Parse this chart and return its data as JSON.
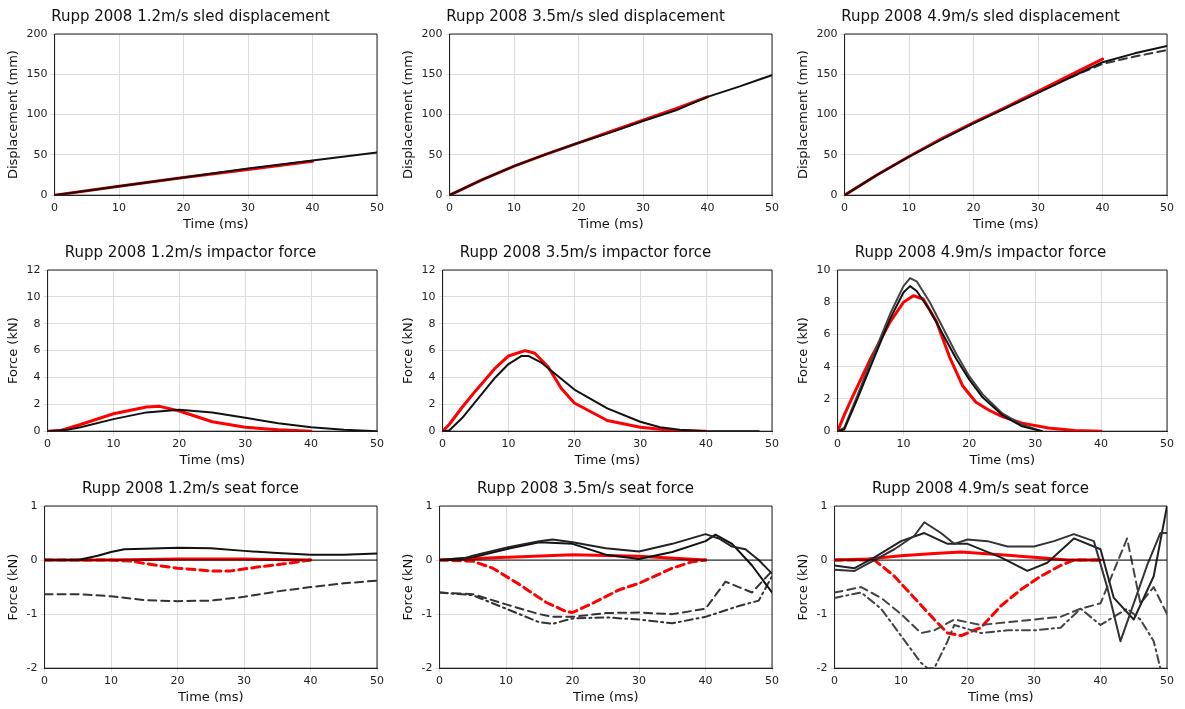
{
  "chart_data": [
    {
      "type": "line",
      "title": "Rupp 2008 1.2m/s sled displacement",
      "xlabel": "Time (ms)",
      "ylabel": "Displacement (mm)",
      "xlim": [
        0,
        50
      ],
      "xticks": [
        0,
        10,
        20,
        30,
        40,
        50
      ],
      "ylim": [
        0,
        200
      ],
      "yticks": [
        0,
        50,
        100,
        150,
        200
      ],
      "grid": true,
      "legend": false,
      "marker": "none",
      "series": [
        {
          "color": "#111111",
          "line_style": "solid",
          "x": [
            0,
            10,
            20,
            30,
            40,
            50
          ],
          "values": [
            0,
            11,
            22,
            33,
            43,
            53
          ]
        },
        {
          "color": "#ff0000",
          "line_style": "solid",
          "x": [
            0,
            10,
            20,
            30,
            40
          ],
          "values": [
            0,
            11,
            22,
            32,
            42
          ]
        }
      ]
    },
    {
      "type": "line",
      "title": "Rupp 2008 3.5m/s sled displacement",
      "xlabel": "Time (ms)",
      "ylabel": "Displacement (mm)",
      "xlim": [
        0,
        50
      ],
      "xticks": [
        0,
        10,
        20,
        30,
        40,
        50
      ],
      "ylim": [
        0,
        200
      ],
      "yticks": [
        0,
        50,
        100,
        150,
        200
      ],
      "grid": true,
      "legend": false,
      "marker": "none",
      "series": [
        {
          "color": "#111111",
          "line_style": "solid",
          "x": [
            0,
            5,
            10,
            15,
            20,
            25,
            30,
            35,
            40,
            45,
            50
          ],
          "values": [
            0,
            19,
            36,
            51,
            65,
            78,
            92,
            105,
            122,
            135,
            149
          ]
        },
        {
          "color": "#ff0000",
          "line_style": "solid",
          "x": [
            0,
            5,
            10,
            15,
            20,
            25,
            30,
            35,
            40
          ],
          "values": [
            0,
            19,
            36,
            51,
            65,
            79,
            93,
            107,
            122
          ]
        }
      ]
    },
    {
      "type": "line",
      "title": "Rupp 2008 4.9m/s sled displacement",
      "xlabel": "Time (ms)",
      "ylabel": "Displacement (mm)",
      "xlim": [
        0,
        50
      ],
      "xticks": [
        0,
        10,
        20,
        30,
        40,
        50
      ],
      "ylim": [
        0,
        200
      ],
      "yticks": [
        0,
        50,
        100,
        150,
        200
      ],
      "grid": true,
      "legend": false,
      "marker": "none",
      "series": [
        {
          "color": "#111111",
          "line_style": "solid",
          "x": [
            0,
            5,
            10,
            15,
            20,
            25,
            30,
            35,
            40,
            45,
            50
          ],
          "values": [
            0,
            25,
            48,
            69,
            89,
            108,
            127,
            146,
            165,
            176,
            185
          ]
        },
        {
          "color": "#333333",
          "line_style": "dashed",
          "x": [
            35,
            40,
            45,
            50
          ],
          "values": [
            146,
            163,
            172,
            180
          ]
        },
        {
          "color": "#ff0000",
          "line_style": "solid",
          "x": [
            0,
            5,
            10,
            15,
            20,
            25,
            30,
            35,
            40
          ],
          "values": [
            0,
            25,
            48,
            70,
            90,
            109,
            129,
            149,
            169
          ]
        }
      ]
    },
    {
      "type": "line",
      "title": "Rupp 2008 1.2m/s impactor force",
      "xlabel": "Time (ms)",
      "ylabel": "Force (kN)",
      "xlim": [
        0,
        50
      ],
      "xticks": [
        0,
        10,
        20,
        30,
        40,
        50
      ],
      "ylim": [
        0,
        12
      ],
      "yticks": [
        0,
        2,
        4,
        6,
        8,
        10,
        12
      ],
      "grid": true,
      "legend": false,
      "marker": "none",
      "series": [
        {
          "color": "#111111",
          "line_style": "solid",
          "x": [
            0,
            3,
            5,
            10,
            15,
            20,
            25,
            30,
            35,
            40,
            45,
            50
          ],
          "values": [
            0,
            0.1,
            0.3,
            0.9,
            1.4,
            1.6,
            1.4,
            1.0,
            0.6,
            0.3,
            0.1,
            0
          ]
        },
        {
          "color": "#ff0000",
          "line_style": "solid",
          "x": [
            0,
            2,
            5,
            10,
            15,
            17,
            20,
            25,
            30,
            35,
            40
          ],
          "values": [
            0,
            0.05,
            0.5,
            1.3,
            1.8,
            1.85,
            1.5,
            0.7,
            0.3,
            0.1,
            0
          ]
        }
      ]
    },
    {
      "type": "line",
      "title": "Rupp 2008 3.5m/s impactor force",
      "xlabel": "Time (ms)",
      "ylabel": "Force (kN)",
      "xlim": [
        0,
        50
      ],
      "xticks": [
        0,
        10,
        20,
        30,
        40,
        50
      ],
      "ylim": [
        0,
        12
      ],
      "yticks": [
        0,
        2,
        4,
        6,
        8,
        10,
        12
      ],
      "grid": true,
      "legend": false,
      "marker": "none",
      "series": [
        {
          "color": "#111111",
          "line_style": "solid",
          "x": [
            0,
            1,
            3,
            5,
            8,
            10,
            12,
            13,
            15,
            18,
            20,
            25,
            30,
            33,
            36,
            40,
            48
          ],
          "values": [
            0,
            0.05,
            1,
            2.2,
            4,
            5,
            5.6,
            5.6,
            5.1,
            3.9,
            3.1,
            1.7,
            0.7,
            0.3,
            0.1,
            0,
            0
          ]
        },
        {
          "color": "#ff0000",
          "line_style": "solid",
          "x": [
            0,
            1,
            3,
            5,
            8,
            10,
            12.5,
            14,
            16,
            18,
            20,
            25,
            30,
            35,
            40
          ],
          "values": [
            0,
            0.5,
            1.8,
            3,
            4.7,
            5.6,
            6,
            5.8,
            4.8,
            3.2,
            2.1,
            0.8,
            0.3,
            0.05,
            0
          ]
        }
      ]
    },
    {
      "type": "line",
      "title": "Rupp 2008 4.9m/s impactor force",
      "xlabel": "Time (ms)",
      "ylabel": "Force (kN)",
      "xlim": [
        0,
        50
      ],
      "xticks": [
        0,
        10,
        20,
        30,
        40,
        50
      ],
      "ylim": [
        0,
        10
      ],
      "yticks": [
        0,
        2,
        4,
        6,
        8,
        10
      ],
      "grid": true,
      "legend": false,
      "marker": "none",
      "series": [
        {
          "color": "#111111",
          "line_style": "solid",
          "x": [
            0,
            1,
            3,
            5,
            8,
            10,
            11,
            12,
            14,
            16,
            18,
            20,
            22,
            25,
            28,
            31
          ],
          "values": [
            0,
            0.1,
            2,
            4,
            7,
            8.6,
            9,
            8.7,
            7.5,
            6,
            4.5,
            3.2,
            2.1,
            1,
            0.3,
            0
          ]
        },
        {
          "color": "#444444",
          "line_style": "solid",
          "x": [
            0,
            1,
            3,
            5,
            8,
            10,
            11,
            12,
            14,
            16,
            18,
            20,
            22,
            25,
            28,
            31
          ],
          "values": [
            0,
            0.2,
            2.2,
            4.3,
            7.3,
            9,
            9.5,
            9.3,
            8,
            6.4,
            4.8,
            3.4,
            2.3,
            1.1,
            0.4,
            0
          ]
        },
        {
          "color": "#ff0000",
          "line_style": "solid",
          "x": [
            0,
            1,
            2,
            5,
            8,
            10,
            11.5,
            13,
            15,
            17,
            19,
            21,
            23,
            25,
            28,
            32,
            36,
            40
          ],
          "values": [
            0,
            1,
            1.9,
            4.5,
            6.8,
            8,
            8.4,
            8.2,
            6.8,
            4.6,
            2.8,
            1.8,
            1.3,
            0.9,
            0.5,
            0.2,
            0.05,
            0
          ]
        }
      ]
    },
    {
      "type": "line",
      "title": "Rupp 2008 1.2m/s seat force",
      "xlabel": "Time (ms)",
      "ylabel": "Force (kN)",
      "xlim": [
        0,
        50
      ],
      "xticks": [
        0,
        10,
        20,
        30,
        40,
        50
      ],
      "ylim": [
        -2,
        1
      ],
      "yticks": [
        -2,
        -1,
        0,
        1
      ],
      "grid": true,
      "legend": false,
      "marker": "none",
      "ref_lines": [
        {
          "axis": "y",
          "value": 0,
          "color": "#000000"
        }
      ],
      "series": [
        {
          "color": "#111111",
          "line_style": "solid",
          "x": [
            0,
            5,
            8,
            10,
            12,
            15,
            20,
            25,
            30,
            35,
            40,
            45,
            50
          ],
          "values": [
            0,
            0,
            0.08,
            0.15,
            0.2,
            0.21,
            0.23,
            0.22,
            0.17,
            0.13,
            0.1,
            0.1,
            0.12
          ]
        },
        {
          "color": "#333333",
          "line_style": "dashed",
          "x": [
            0,
            5,
            10,
            15,
            20,
            25,
            30,
            35,
            40,
            45,
            50
          ],
          "values": [
            -0.63,
            -0.63,
            -0.67,
            -0.74,
            -0.76,
            -0.75,
            -0.68,
            -0.58,
            -0.5,
            -0.43,
            -0.38
          ]
        },
        {
          "color": "#ff0000",
          "line_style": "solid",
          "x": [
            0,
            10,
            20,
            30,
            40
          ],
          "values": [
            0,
            0,
            0.02,
            0.02,
            0
          ]
        },
        {
          "color": "#ff0000",
          "line_style": "dashed",
          "x": [
            0,
            10,
            13,
            17,
            20,
            25,
            28,
            32,
            36,
            40
          ],
          "values": [
            0,
            0,
            -0.02,
            -0.1,
            -0.15,
            -0.2,
            -0.2,
            -0.13,
            -0.07,
            0
          ]
        }
      ]
    },
    {
      "type": "line",
      "title": "Rupp 2008 3.5m/s seat force",
      "xlabel": "Time (ms)",
      "ylabel": "Force (kN)",
      "xlim": [
        0,
        50
      ],
      "xticks": [
        0,
        10,
        20,
        30,
        40,
        50
      ],
      "ylim": [
        -2,
        1
      ],
      "yticks": [
        -2,
        -1,
        0,
        1
      ],
      "grid": true,
      "legend": false,
      "marker": "none",
      "ref_lines": [
        {
          "axis": "y",
          "value": 0,
          "color": "#000000"
        }
      ],
      "series": [
        {
          "color": "#222222",
          "line_style": "solid",
          "x": [
            0,
            3,
            5,
            10,
            15,
            17,
            20,
            25,
            30,
            35,
            40,
            42,
            44,
            46,
            48,
            50
          ],
          "values": [
            0,
            0,
            0.08,
            0.23,
            0.35,
            0.38,
            0.33,
            0.22,
            0.16,
            0.3,
            0.48,
            0.4,
            0.25,
            0.2,
            0,
            -0.25
          ]
        },
        {
          "color": "#111111",
          "line_style": "solid",
          "x": [
            0,
            5,
            10,
            15,
            20,
            25,
            30,
            35,
            40,
            41.5,
            44,
            47,
            50
          ],
          "values": [
            0,
            0.05,
            0.2,
            0.33,
            0.3,
            0.1,
            0.02,
            0.15,
            0.35,
            0.47,
            0.3,
            -0.1,
            -0.6
          ]
        },
        {
          "color": "#333333",
          "line_style": "dashed",
          "x": [
            0,
            5,
            10,
            15,
            17,
            20,
            25,
            30,
            35,
            40,
            43,
            45,
            47,
            50
          ],
          "values": [
            -0.6,
            -0.63,
            -0.82,
            -1.0,
            -1.05,
            -1.05,
            -0.98,
            -0.97,
            -1.0,
            -0.9,
            -0.4,
            -0.5,
            -0.6,
            -0.2
          ]
        },
        {
          "color": "#333333",
          "line_style": "dashdot",
          "x": [
            0,
            5,
            10,
            15,
            17,
            20,
            25,
            30,
            35,
            40,
            45,
            48,
            50
          ],
          "values": [
            -0.6,
            -0.65,
            -0.9,
            -1.15,
            -1.18,
            -1.08,
            -1.06,
            -1.1,
            -1.17,
            -1.05,
            -0.85,
            -0.75,
            -0.3
          ]
        },
        {
          "color": "#ff0000",
          "line_style": "solid",
          "x": [
            0,
            10,
            20,
            30,
            40
          ],
          "values": [
            0,
            0.05,
            0.1,
            0.07,
            0
          ]
        },
        {
          "color": "#ff0000",
          "line_style": "dashed",
          "x": [
            0,
            5,
            8,
            12,
            16,
            19,
            20,
            23,
            27,
            30,
            35,
            38,
            40
          ],
          "values": [
            0,
            -0.02,
            -0.15,
            -0.45,
            -0.78,
            -0.95,
            -0.97,
            -0.8,
            -0.55,
            -0.43,
            -0.15,
            -0.03,
            0
          ]
        }
      ]
    },
    {
      "type": "line",
      "title": "Rupp 2008 4.9m/s seat force",
      "xlabel": "Time (ms)",
      "ylabel": "Force (kN)",
      "xlim": [
        0,
        50
      ],
      "xticks": [
        0,
        10,
        20,
        30,
        40,
        50
      ],
      "ylim": [
        -2,
        1
      ],
      "yticks": [
        -2,
        -1,
        0,
        1
      ],
      "grid": true,
      "legend": false,
      "marker": "none",
      "ref_lines": [
        {
          "axis": "y",
          "value": 0,
          "color": "#000000"
        }
      ],
      "series": [
        {
          "color": "#333333",
          "line_style": "solid",
          "x": [
            0,
            3,
            6,
            9,
            12,
            13.5,
            16,
            18,
            20,
            23,
            26,
            30,
            33,
            36,
            39,
            41,
            43,
            45,
            47,
            49,
            50
          ],
          "values": [
            -0.18,
            -0.2,
            0,
            0.2,
            0.45,
            0.7,
            0.5,
            0.3,
            0.38,
            0.35,
            0.25,
            0.25,
            0.35,
            0.48,
            0.35,
            -0.5,
            -1.5,
            -0.8,
            -0.1,
            0.5,
            0.5
          ]
        },
        {
          "color": "#222222",
          "line_style": "solid",
          "x": [
            0,
            3,
            6,
            10,
            13.5,
            17,
            20,
            25,
            29,
            32,
            36,
            40,
            42,
            45,
            48,
            50
          ],
          "values": [
            -0.1,
            -0.15,
            0.05,
            0.35,
            0.5,
            0.3,
            0.3,
            0.05,
            -0.2,
            -0.05,
            0.4,
            0.2,
            -0.7,
            -1.1,
            -0.3,
            1
          ]
        },
        {
          "color": "#444444",
          "line_style": "dashed",
          "x": [
            0,
            4,
            7,
            10,
            13,
            15,
            18,
            22,
            26,
            30,
            34,
            37,
            40,
            42,
            44,
            46,
            48,
            50
          ],
          "values": [
            -0.6,
            -0.5,
            -0.7,
            -1.0,
            -1.35,
            -1.3,
            -1.1,
            -1.2,
            -1.15,
            -1.1,
            -1.05,
            -0.9,
            -0.8,
            -0.2,
            0.4,
            -0.8,
            -0.5,
            -1
          ]
        },
        {
          "color": "#444444",
          "line_style": "dashdot",
          "x": [
            0,
            4,
            7,
            10,
            13,
            14,
            15,
            17,
            18,
            22,
            26,
            30,
            34,
            37,
            40,
            44,
            46,
            48,
            49
          ],
          "values": [
            -0.7,
            -0.6,
            -0.9,
            -1.4,
            -1.9,
            -2,
            -2,
            -1.5,
            -1.2,
            -1.35,
            -1.3,
            -1.3,
            -1.25,
            -0.9,
            -1.2,
            -0.9,
            -1.1,
            -1.5,
            -2
          ]
        },
        {
          "color": "#ff0000",
          "line_style": "solid",
          "x": [
            0,
            5,
            10,
            15,
            19,
            25,
            30,
            35,
            40
          ],
          "values": [
            0,
            0.02,
            0.08,
            0.12,
            0.15,
            0.1,
            0.05,
            0,
            0
          ]
        },
        {
          "color": "#ff0000",
          "line_style": "dashed",
          "x": [
            0,
            6,
            9,
            12,
            15,
            17,
            19,
            22,
            25,
            28,
            31,
            34,
            36,
            40
          ],
          "values": [
            0,
            0,
            -0.3,
            -0.7,
            -1.1,
            -1.35,
            -1.4,
            -1.25,
            -0.85,
            -0.55,
            -0.3,
            -0.1,
            0,
            0
          ]
        }
      ]
    }
  ]
}
